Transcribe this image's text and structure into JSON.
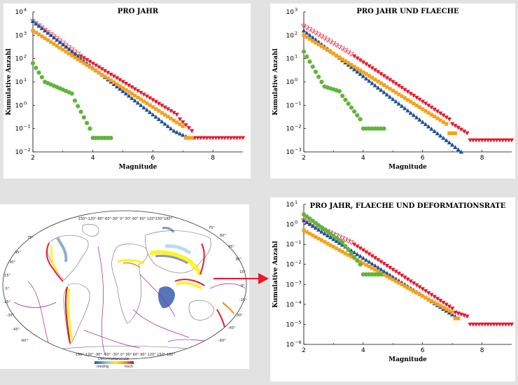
{
  "colors": {
    "red": "#e8182d",
    "orange": "#f7a11a",
    "blue": "#1f4e9c",
    "green": "#5fb53a",
    "arrow": "#e8182d"
  },
  "chart_data": [
    {
      "type": "scatter",
      "title": "PRO JAHR",
      "xlabel": "Magnitude",
      "ylabel": "Kumulative Anzahl",
      "xlim": [
        2,
        9
      ],
      "ylim_log10": [
        -2,
        4
      ],
      "xticks": [
        "2",
        "4",
        "6",
        "8"
      ],
      "yticks": [
        {
          "base": "10",
          "exp": "4"
        },
        {
          "base": "10",
          "exp": "3"
        },
        {
          "base": "10",
          "exp": "2"
        },
        {
          "base": "10",
          "exp": "1"
        },
        {
          "base": "10",
          "exp": "0"
        },
        {
          "base": "10",
          "exp": "−1"
        },
        {
          "base": "10",
          "exp": "−2"
        }
      ],
      "series": [
        {
          "marker": "xtri",
          "color": "#e8182d",
          "x0": 2.0,
          "y0": 3.6,
          "x1": 3.5,
          "y1": 2.2,
          "step": 0.1
        },
        {
          "marker": "tri-down",
          "color": "#e8182d",
          "x0": 3.6,
          "y0": 2.1,
          "x1": 6.8,
          "y1": -0.4,
          "step": 0.1
        },
        {
          "marker": "tri-down",
          "color": "#e8182d",
          "x0": 6.9,
          "y0": -0.6,
          "x1": 7.3,
          "y1": -1.1,
          "step": 0.1
        },
        {
          "marker": "tri-down",
          "color": "#e8182d",
          "x0": 7.4,
          "y0": -1.4,
          "x1": 9.0,
          "y1": -1.4,
          "step": 0.1
        },
        {
          "marker": "tri-up",
          "color": "#1f4e9c",
          "x0": 2.0,
          "y0": 3.6,
          "x1": 6.6,
          "y1": -1.0,
          "step": 0.1
        },
        {
          "marker": "tri-up",
          "color": "#1f4e9c",
          "x0": 6.7,
          "y0": -1.1,
          "x1": 7.2,
          "y1": -1.4,
          "step": 0.1
        },
        {
          "marker": "square",
          "color": "#f7a11a",
          "x0": 2.0,
          "y0": 3.2,
          "x1": 7.0,
          "y1": -0.9,
          "step": 0.1
        },
        {
          "marker": "square",
          "color": "#f7a11a",
          "x0": 7.1,
          "y0": -1.4,
          "x1": 7.3,
          "y1": -1.4,
          "step": 0.1
        },
        {
          "marker": "circle",
          "color": "#5fb53a",
          "x0": 2.0,
          "y0": 1.8,
          "x1": 2.3,
          "y1": 1.2,
          "step": 0.1
        },
        {
          "marker": "circle",
          "color": "#5fb53a",
          "x0": 2.4,
          "y0": 1.0,
          "x1": 3.3,
          "y1": 0.5,
          "step": 0.1
        },
        {
          "marker": "circle",
          "color": "#5fb53a",
          "x0": 3.4,
          "y0": 0.2,
          "x1": 3.9,
          "y1": -1.0,
          "step": 0.1
        },
        {
          "marker": "circle",
          "color": "#5fb53a",
          "x0": 4.0,
          "y0": -1.4,
          "x1": 4.6,
          "y1": -1.4,
          "step": 0.1
        }
      ]
    },
    {
      "type": "scatter",
      "title": "PRO JAHR UND FLAECHE",
      "xlabel": "Magnitude",
      "ylabel": "Kumulative Anzahl",
      "xlim": [
        2,
        9
      ],
      "ylim_log10": [
        -3,
        3
      ],
      "xticks": [
        "2",
        "4",
        "6",
        "8"
      ],
      "yticks": [
        {
          "base": "10",
          "exp": "3"
        },
        {
          "base": "10",
          "exp": "2"
        },
        {
          "base": "10",
          "exp": "1"
        },
        {
          "base": "10",
          "exp": "0"
        },
        {
          "base": "10",
          "exp": "−1"
        },
        {
          "base": "10",
          "exp": "−2"
        },
        {
          "base": "10",
          "exp": "−3"
        }
      ],
      "series": [
        {
          "marker": "xtri",
          "color": "#e8182d",
          "x0": 2.0,
          "y0": 2.4,
          "x1": 3.6,
          "y1": 1.2,
          "step": 0.1
        },
        {
          "marker": "tri-down",
          "color": "#e8182d",
          "x0": 3.7,
          "y0": 1.1,
          "x1": 6.9,
          "y1": -1.6,
          "step": 0.1
        },
        {
          "marker": "tri-down",
          "color": "#e8182d",
          "x0": 7.0,
          "y0": -1.8,
          "x1": 7.5,
          "y1": -2.2,
          "step": 0.1
        },
        {
          "marker": "tri-down",
          "color": "#e8182d",
          "x0": 7.6,
          "y0": -2.5,
          "x1": 9.0,
          "y1": -2.5,
          "step": 0.1
        },
        {
          "marker": "tri-up",
          "color": "#1f4e9c",
          "x0": 2.0,
          "y0": 2.2,
          "x1": 7.0,
          "y1": -2.7,
          "step": 0.1
        },
        {
          "marker": "tri-up",
          "color": "#1f4e9c",
          "x0": 7.1,
          "y0": -2.8,
          "x1": 7.3,
          "y1": -3.0,
          "step": 0.1
        },
        {
          "marker": "square",
          "color": "#f7a11a",
          "x0": 2.0,
          "y0": 2.0,
          "x1": 6.8,
          "y1": -1.8,
          "step": 0.1
        },
        {
          "marker": "square",
          "color": "#f7a11a",
          "x0": 6.9,
          "y0": -2.2,
          "x1": 7.1,
          "y1": -2.2,
          "step": 0.1
        },
        {
          "marker": "circle",
          "color": "#5fb53a",
          "x0": 2.0,
          "y0": 1.3,
          "x1": 2.6,
          "y1": 0.0,
          "step": 0.1
        },
        {
          "marker": "circle",
          "color": "#5fb53a",
          "x0": 2.7,
          "y0": -0.2,
          "x1": 3.2,
          "y1": -0.4,
          "step": 0.1
        },
        {
          "marker": "circle",
          "color": "#5fb53a",
          "x0": 3.3,
          "y0": -0.6,
          "x1": 3.9,
          "y1": -1.6,
          "step": 0.1
        },
        {
          "marker": "circle",
          "color": "#5fb53a",
          "x0": 4.0,
          "y0": -2.0,
          "x1": 4.7,
          "y1": -2.0,
          "step": 0.1
        }
      ]
    },
    {
      "type": "scatter",
      "title": "PRO JAHR, FLAECHE UND DEFORMATIONSRATE",
      "xlabel": "Magnitude",
      "ylabel": "Kumulative Anzahl",
      "xlim": [
        2,
        9
      ],
      "ylim_log10": [
        -6,
        1
      ],
      "xticks": [
        "2",
        "4",
        "6",
        "8"
      ],
      "yticks": [
        {
          "base": "10",
          "exp": "1"
        },
        {
          "base": "10",
          "exp": "0"
        },
        {
          "base": "10",
          "exp": "−1"
        },
        {
          "base": "10",
          "exp": "−2"
        },
        {
          "base": "10",
          "exp": "−3"
        },
        {
          "base": "10",
          "exp": "−4"
        },
        {
          "base": "10",
          "exp": "−5"
        },
        {
          "base": "10",
          "exp": "−6"
        }
      ],
      "series": [
        {
          "marker": "xtri",
          "color": "#e8182d",
          "x0": 2.0,
          "y0": 0.2,
          "x1": 3.6,
          "y1": -0.9,
          "step": 0.1
        },
        {
          "marker": "tri-down",
          "color": "#e8182d",
          "x0": 3.7,
          "y0": -1.0,
          "x1": 7.0,
          "y1": -4.2,
          "step": 0.1
        },
        {
          "marker": "tri-down",
          "color": "#e8182d",
          "x0": 7.1,
          "y0": -4.4,
          "x1": 7.5,
          "y1": -4.6,
          "step": 0.1
        },
        {
          "marker": "tri-down",
          "color": "#e8182d",
          "x0": 7.6,
          "y0": -5.0,
          "x1": 9.0,
          "y1": -5.0,
          "step": 0.1
        },
        {
          "marker": "tri-up",
          "color": "#1f4e9c",
          "x0": 2.0,
          "y0": 0.2,
          "x1": 7.2,
          "y1": -4.7,
          "step": 0.1
        },
        {
          "marker": "square",
          "color": "#f7a11a",
          "x0": 2.0,
          "y0": -0.3,
          "x1": 7.0,
          "y1": -4.4,
          "step": 0.1
        },
        {
          "marker": "square",
          "color": "#f7a11a",
          "x0": 7.1,
          "y0": -4.7,
          "x1": 7.2,
          "y1": -4.7,
          "step": 0.1
        },
        {
          "marker": "circle",
          "color": "#5fb53a",
          "x0": 2.0,
          "y0": 0.5,
          "x1": 3.2,
          "y1": -0.8,
          "step": 0.1
        },
        {
          "marker": "circle",
          "color": "#5fb53a",
          "x0": 3.3,
          "y0": -0.9,
          "x1": 3.9,
          "y1": -2.0,
          "step": 0.1
        },
        {
          "marker": "circle",
          "color": "#5fb53a",
          "x0": 4.0,
          "y0": -2.5,
          "x1": 4.6,
          "y1": -2.5,
          "step": 0.1
        }
      ]
    }
  ],
  "map": {
    "top_lon_labels": "-150°-120°-90°-60°-30° 0° 30° 60° 90° 120°150°180°",
    "bottom_lon_labels": "-150°-120° -90° -60° -30° 0° 30° 60° 90° 120° 150° 180°",
    "left_lat_labels": [
      "75°",
      "45°",
      "30°",
      "15°",
      "0°",
      "-15°",
      "-30°",
      "-45°",
      "-60°"
    ],
    "right_lat_labels": [
      "75°",
      "60°",
      "45°",
      "30°",
      "15°",
      "0°",
      "-15°",
      "-30°",
      "-45°",
      "-60°"
    ],
    "legend_title": "Deformationsrate",
    "legend_low": "niedrig",
    "legend_high": "hoch"
  }
}
